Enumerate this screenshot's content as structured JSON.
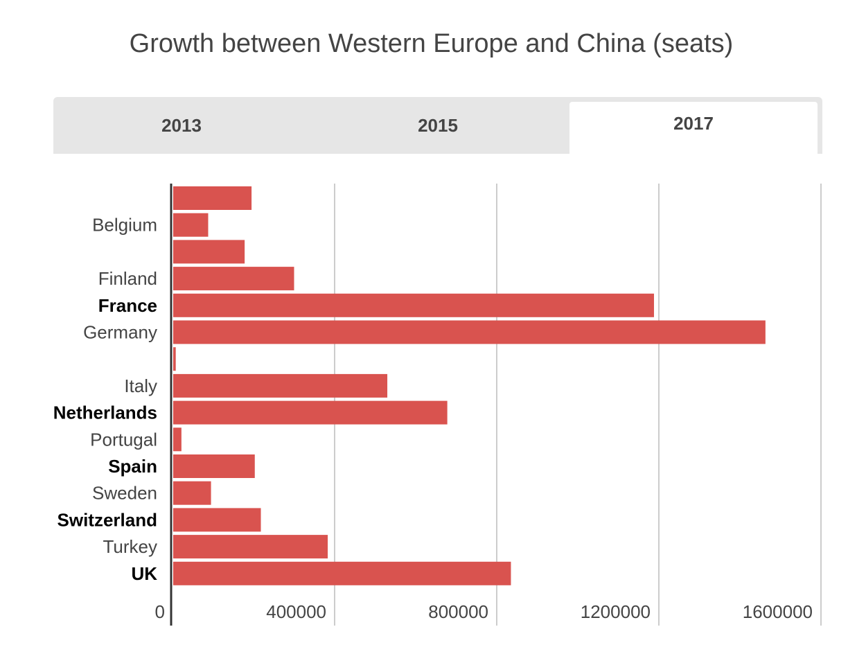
{
  "title": "Growth between Western Europe and China (seats)",
  "tabs": [
    {
      "label": "2013",
      "active": false
    },
    {
      "label": "2015",
      "active": false
    },
    {
      "label": "2017",
      "active": true
    }
  ],
  "chart_data": {
    "type": "bar",
    "orientation": "horizontal",
    "title": "Growth between Western Europe and China (seats)",
    "xlabel": "",
    "ylabel": "",
    "xlim": [
      0,
      1600000
    ],
    "x_ticks": [
      "0",
      "400000",
      "800000",
      "1200000",
      "1600000"
    ],
    "grid": true,
    "bar_color": "#d9534f",
    "categories": [
      "",
      "Belgium",
      "",
      "Finland",
      "France",
      "Germany",
      "",
      "Italy",
      "Netherlands",
      "Portugal",
      "Spain",
      "Sweden",
      "Switzerland",
      "Turkey",
      "UK"
    ],
    "bold_labels": [
      "France",
      "Netherlands",
      "Spain",
      "Switzerland",
      "UK"
    ],
    "values": [
      195000,
      88000,
      178000,
      300000,
      1188000,
      1463000,
      8000,
      530000,
      678000,
      22000,
      203000,
      95000,
      218000,
      383000,
      835000
    ]
  }
}
